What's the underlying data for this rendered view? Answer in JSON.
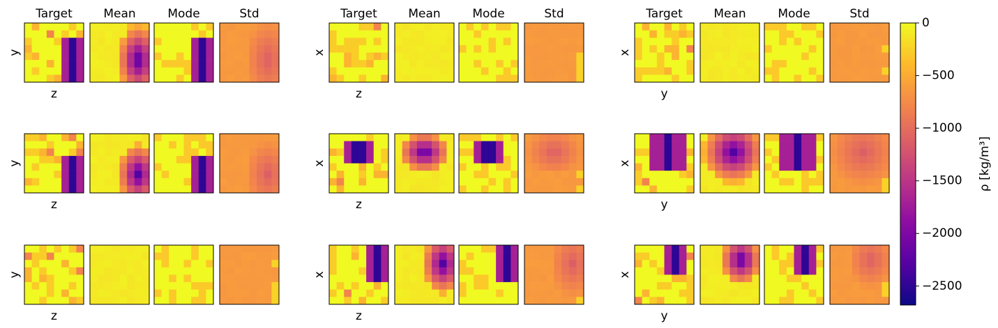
{
  "chart_data": {
    "type": "heatmap",
    "column_titles": [
      "Target",
      "Mean",
      "Mode",
      "Std"
    ],
    "grid_size": 8,
    "groups": [
      {
        "ylabel": "y",
        "xlabel": "z"
      },
      {
        "ylabel": "x",
        "xlabel": "z"
      },
      {
        "ylabel": "x",
        "xlabel": "y"
      }
    ],
    "colorbar": {
      "label": "ρ [kg/m³]",
      "colormap": "plasma",
      "range": [
        -2680,
        0
      ],
      "ticks": [
        0,
        -500,
        -1000,
        -1500,
        -2000,
        -2500
      ],
      "tick_labels": [
        "0",
        "−500",
        "−1000",
        "−1500",
        "−2000",
        "−2500"
      ]
    },
    "anomaly_blobs": {
      "note_g0r0": [
        5,
        8,
        2,
        8
      ],
      "note_g0r1": [
        5,
        8,
        3,
        8
      ],
      "note_g2r2": [
        4,
        7,
        0,
        4
      ]
    }
  }
}
